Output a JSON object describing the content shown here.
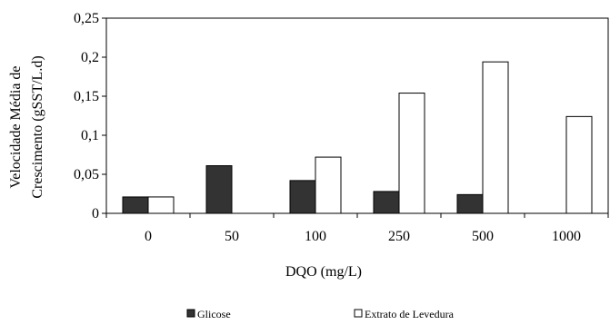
{
  "chart_data": {
    "type": "bar",
    "title": "",
    "xlabel": "DQO (mg/L)",
    "ylabel_lines": [
      "Velocidade Média de",
      "Crescimento  (gSST/L.d)"
    ],
    "categories": [
      "0",
      "50",
      "100",
      "250",
      "500",
      "1000"
    ],
    "ylim": [
      0,
      0.25
    ],
    "yticks": [
      {
        "value": 0,
        "label": "0"
      },
      {
        "value": 0.05,
        "label": "0,05"
      },
      {
        "value": 0.1,
        "label": "0,1"
      },
      {
        "value": 0.15,
        "label": "0,15"
      },
      {
        "value": 0.2,
        "label": "0,2"
      },
      {
        "value": 0.25,
        "label": "0,25"
      }
    ],
    "grid": false,
    "legend_position": "bottom",
    "series": [
      {
        "name": "Glicose",
        "color": "#333333",
        "values": [
          0.021,
          0.061,
          0.042,
          0.028,
          0.024,
          null
        ]
      },
      {
        "name": "Extrato de Levedura",
        "color": "#ffffff",
        "values": [
          0.021,
          null,
          0.072,
          0.154,
          0.194,
          0.124
        ]
      }
    ]
  }
}
